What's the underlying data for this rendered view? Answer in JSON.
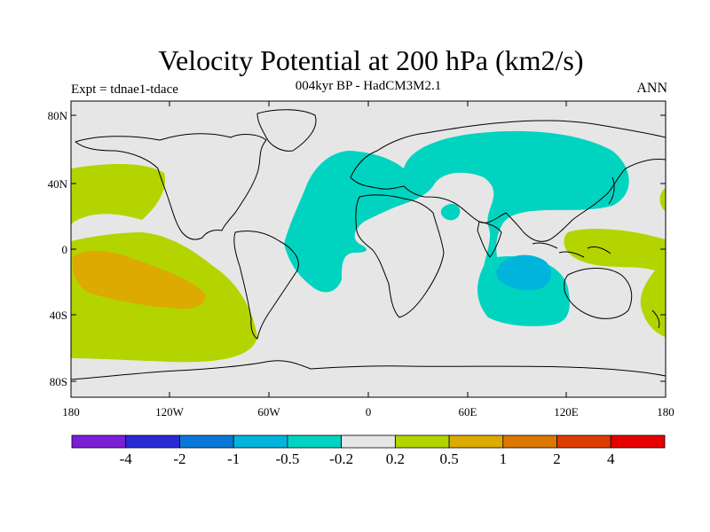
{
  "title": "Velocity Potential at 200 hPa (km2/s)",
  "subtitle": "004kyr BP - HadCM3M2.1",
  "left_label": "Expt = tdnae1-tdace",
  "right_label": "ANN",
  "axes": {
    "lat_ticks": [
      "80N",
      "40N",
      "0",
      "40S",
      "80S"
    ],
    "lon_ticks": [
      "180",
      "120W",
      "60W",
      "0",
      "60E",
      "120E",
      "180"
    ]
  },
  "colorbar": {
    "colors": [
      "#7a1fd8",
      "#2a2ad4",
      "#0a78d8",
      "#00b4dc",
      "#00d4c0",
      "#e6e6e6",
      "#b4d400",
      "#dcaa00",
      "#dc7800",
      "#dc3c00",
      "#e60000"
    ],
    "labels": [
      "-4",
      "-2",
      "-1",
      "-0.5",
      "-0.2",
      "0.2",
      "0.5",
      "1",
      "2",
      "4"
    ]
  },
  "colors": {
    "background": "#e6e6e6",
    "coastline": "#000000"
  }
}
